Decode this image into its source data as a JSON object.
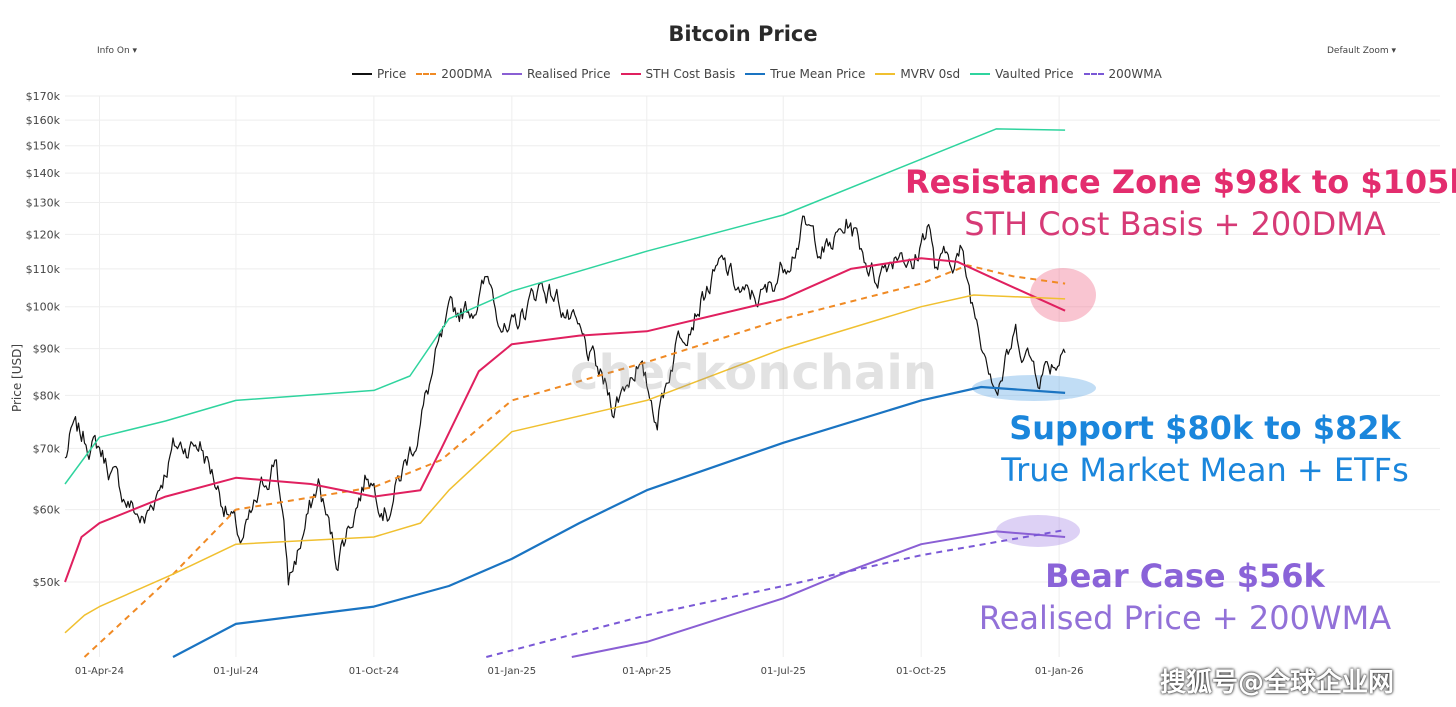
{
  "controls": {
    "info": "Info On ▾",
    "zoom": "Default Zoom ▾"
  },
  "watermark": "checkonchain",
  "corner_watermark": "搜狐号@全球企业网",
  "annotations": [
    {
      "heading": "Resistance Zone $98k to $105k",
      "sub": "STH Cost Basis + 200DMA",
      "color": "#e32d6e"
    },
    {
      "heading": "Support $80k to $82k",
      "sub": "True Market Mean + ETFs",
      "color": "#1a86dc"
    },
    {
      "heading": "Bear Case $56k",
      "sub": "Realised Price + 200WMA",
      "color": "#8a63d8"
    }
  ],
  "chart_data": {
    "type": "line",
    "title": "Bitcoin Price",
    "ylabel": "Price [USD]",
    "xlabel": "",
    "yscale": "log",
    "ylim": [
      41400,
      170000
    ],
    "xlim": [
      "2024-03-09",
      "2026-09-12"
    ],
    "yticks": [
      50000,
      60000,
      70000,
      80000,
      90000,
      100000,
      110000,
      120000,
      130000,
      140000,
      150000,
      160000,
      170000
    ],
    "ytick_labels": [
      "$50k",
      "$60k",
      "$70k",
      "$80k",
      "$90k",
      "$100k",
      "$110k",
      "$120k",
      "$130k",
      "$140k",
      "$150k",
      "$160k",
      "$170k"
    ],
    "xticks": [
      "2024-04-01",
      "2024-07-01",
      "2024-10-01",
      "2025-01-01",
      "2025-04-01",
      "2025-07-01",
      "2025-10-01",
      "2026-01-01"
    ],
    "xtick_labels": [
      "01-Apr-24",
      "01-Jul-24",
      "01-Oct-24",
      "01-Jan-25",
      "01-Apr-25",
      "01-Jul-25",
      "01-Oct-25",
      "01-Jan-26"
    ],
    "grid": true,
    "legend": "top-center",
    "series": [
      {
        "name": "Price",
        "color": "#111111",
        "dash": false,
        "width": 1.2,
        "noise": true,
        "points": [
          [
            "2024-03-09",
            68000
          ],
          [
            "2024-03-14",
            73000
          ],
          [
            "2024-04-01",
            70000
          ],
          [
            "2024-04-17",
            62000
          ],
          [
            "2024-05-01",
            58000
          ],
          [
            "2024-05-20",
            70000
          ],
          [
            "2024-06-07",
            71000
          ],
          [
            "2024-06-25",
            60000
          ],
          [
            "2024-07-05",
            55000
          ],
          [
            "2024-07-28",
            69000
          ],
          [
            "2024-08-05",
            50000
          ],
          [
            "2024-08-25",
            64000
          ],
          [
            "2024-09-06",
            53000
          ],
          [
            "2024-09-27",
            66000
          ],
          [
            "2024-10-10",
            60000
          ],
          [
            "2024-10-29",
            72000
          ],
          [
            "2024-11-12",
            88000
          ],
          [
            "2024-11-22",
            98000
          ],
          [
            "2024-12-05",
            100000
          ],
          [
            "2024-12-17",
            107000
          ],
          [
            "2024-12-30",
            92000
          ],
          [
            "2025-01-20",
            106000
          ],
          [
            "2025-02-01",
            102000
          ],
          [
            "2025-02-25",
            86000
          ],
          [
            "2025-03-10",
            78000
          ],
          [
            "2025-03-25",
            87000
          ],
          [
            "2025-04-08",
            76000
          ],
          [
            "2025-04-22",
            93000
          ],
          [
            "2025-05-10",
            104000
          ],
          [
            "2025-05-22",
            111000
          ],
          [
            "2025-06-05",
            102000
          ],
          [
            "2025-06-20",
            103000
          ],
          [
            "2025-07-14",
            122000
          ],
          [
            "2025-07-31",
            115000
          ],
          [
            "2025-08-14",
            124000
          ],
          [
            "2025-08-31",
            108000
          ],
          [
            "2025-09-18",
            117000
          ],
          [
            "2025-09-25",
            109000
          ],
          [
            "2025-10-06",
            125000
          ],
          [
            "2025-10-10",
            110000
          ],
          [
            "2025-10-27",
            115000
          ],
          [
            "2025-11-04",
            101000
          ],
          [
            "2025-11-21",
            82000
          ],
          [
            "2025-12-03",
            93000
          ],
          [
            "2025-12-18",
            85000
          ],
          [
            "2026-01-01",
            88000
          ],
          [
            "2026-01-05",
            92000
          ]
        ]
      },
      {
        "name": "200DMA",
        "color": "#f08a24",
        "dash": true,
        "width": 2,
        "points": [
          [
            "2024-03-22",
            41400
          ],
          [
            "2024-05-15",
            50000
          ],
          [
            "2024-07-01",
            60000
          ],
          [
            "2024-10-01",
            63500
          ],
          [
            "2024-11-15",
            68000
          ],
          [
            "2025-01-01",
            79000
          ],
          [
            "2025-04-01",
            87000
          ],
          [
            "2025-07-01",
            97000
          ],
          [
            "2025-10-01",
            106000
          ],
          [
            "2025-11-01",
            111000
          ],
          [
            "2025-12-01",
            108000
          ],
          [
            "2026-01-05",
            106000
          ]
        ]
      },
      {
        "name": "Realised Price",
        "color": "#8a5fd4",
        "dash": false,
        "width": 2,
        "points": [
          [
            "2025-02-10",
            41400
          ],
          [
            "2025-04-01",
            43000
          ],
          [
            "2025-07-01",
            48000
          ],
          [
            "2025-08-15",
            51500
          ],
          [
            "2025-10-01",
            55000
          ],
          [
            "2025-11-20",
            56800
          ],
          [
            "2026-01-05",
            56000
          ]
        ]
      },
      {
        "name": "STH Cost Basis",
        "color": "#e0205f",
        "dash": false,
        "width": 2,
        "points": [
          [
            "2024-03-09",
            50000
          ],
          [
            "2024-03-20",
            56000
          ],
          [
            "2024-04-01",
            58000
          ],
          [
            "2024-05-15",
            62000
          ],
          [
            "2024-07-01",
            65000
          ],
          [
            "2024-08-20",
            64000
          ],
          [
            "2024-10-01",
            62000
          ],
          [
            "2024-11-01",
            63000
          ],
          [
            "2024-11-15",
            70000
          ],
          [
            "2024-12-10",
            85000
          ],
          [
            "2025-01-01",
            91000
          ],
          [
            "2025-02-15",
            93000
          ],
          [
            "2025-04-01",
            94000
          ],
          [
            "2025-07-01",
            102000
          ],
          [
            "2025-08-15",
            110000
          ],
          [
            "2025-10-01",
            113000
          ],
          [
            "2025-10-25",
            112000
          ],
          [
            "2025-11-15",
            108000
          ],
          [
            "2026-01-05",
            99000
          ]
        ]
      },
      {
        "name": "True Mean Price",
        "color": "#1a74c2",
        "dash": false,
        "width": 2.2,
        "points": [
          [
            "2024-05-20",
            41400
          ],
          [
            "2024-07-01",
            45000
          ],
          [
            "2024-10-01",
            47000
          ],
          [
            "2024-11-20",
            49500
          ],
          [
            "2025-01-01",
            53000
          ],
          [
            "2025-02-15",
            58000
          ],
          [
            "2025-04-01",
            63000
          ],
          [
            "2025-07-01",
            71000
          ],
          [
            "2025-10-01",
            79000
          ],
          [
            "2025-11-10",
            81700
          ],
          [
            "2026-01-05",
            80500
          ]
        ]
      },
      {
        "name": "MVRV 0sd",
        "color": "#f0c030",
        "dash": false,
        "width": 1.5,
        "points": [
          [
            "2024-03-09",
            44000
          ],
          [
            "2024-03-22",
            46000
          ],
          [
            "2024-04-01",
            47000
          ],
          [
            "2024-05-20",
            51000
          ],
          [
            "2024-07-01",
            55000
          ],
          [
            "2024-10-01",
            56000
          ],
          [
            "2024-11-01",
            58000
          ],
          [
            "2024-11-20",
            63000
          ],
          [
            "2025-01-01",
            73000
          ],
          [
            "2025-04-01",
            79000
          ],
          [
            "2025-07-01",
            90000
          ],
          [
            "2025-10-01",
            100000
          ],
          [
            "2025-11-05",
            103000
          ],
          [
            "2026-01-05",
            102000
          ]
        ]
      },
      {
        "name": "Vaulted Price",
        "color": "#2fd49e",
        "dash": false,
        "width": 1.5,
        "points": [
          [
            "2024-03-09",
            64000
          ],
          [
            "2024-04-01",
            72000
          ],
          [
            "2024-05-15",
            75000
          ],
          [
            "2024-07-01",
            79000
          ],
          [
            "2024-10-01",
            81000
          ],
          [
            "2024-10-25",
            84000
          ],
          [
            "2024-11-20",
            97000
          ],
          [
            "2025-01-01",
            104000
          ],
          [
            "2025-04-01",
            115000
          ],
          [
            "2025-07-01",
            126000
          ],
          [
            "2025-10-01",
            145000
          ],
          [
            "2025-11-20",
            156500
          ],
          [
            "2026-01-05",
            156000
          ]
        ]
      },
      {
        "name": "200WMA",
        "color": "#7a58d6",
        "dash": true,
        "width": 2,
        "points": [
          [
            "2024-12-15",
            41400
          ],
          [
            "2025-04-01",
            46000
          ],
          [
            "2025-07-01",
            49500
          ],
          [
            "2025-10-01",
            53500
          ],
          [
            "2026-01-05",
            57000
          ]
        ]
      }
    ]
  }
}
